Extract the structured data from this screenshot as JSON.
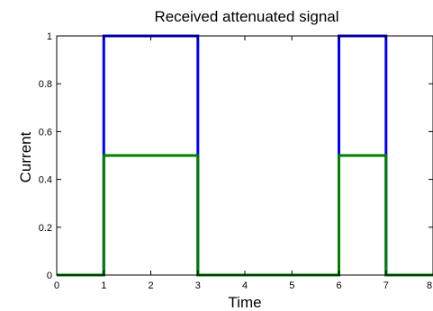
{
  "chart_data": {
    "type": "line",
    "title": "Received attenuated signal",
    "xlabel": "Time",
    "ylabel": "Current",
    "xlim": [
      0,
      8
    ],
    "ylim": [
      0,
      1
    ],
    "grid": false,
    "xticks": [
      0,
      1,
      2,
      3,
      4,
      5,
      6,
      7,
      8
    ],
    "xtick_labels": [
      "0",
      "1",
      "2",
      "3",
      "4",
      "5",
      "6",
      "7",
      "8"
    ],
    "yticks": [
      0,
      0.2,
      0.4,
      0.6,
      0.8,
      1
    ],
    "ytick_labels": [
      "0",
      "0.2",
      "0.4",
      "0.6",
      "0.8",
      "1"
    ],
    "series": [
      {
        "color": "#0000ff",
        "x": [
          0,
          1,
          1,
          3,
          3,
          6,
          6,
          7,
          7,
          8
        ],
        "y": [
          0,
          0,
          1,
          1,
          0,
          0,
          1,
          1,
          0,
          0
        ]
      },
      {
        "color": "#007f00",
        "x": [
          0,
          1,
          1,
          3,
          3,
          6,
          6,
          7,
          7,
          8
        ],
        "y": [
          0,
          0,
          0.5,
          0.5,
          0,
          0,
          0.5,
          0.5,
          0,
          0
        ]
      }
    ]
  }
}
